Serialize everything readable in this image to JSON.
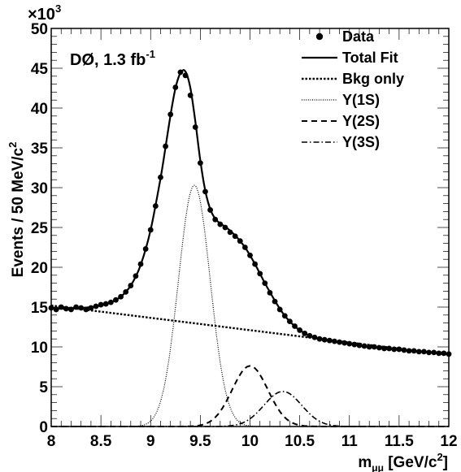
{
  "chart_data": {
    "type": "line",
    "experiment_label": "DØ, 1.3 fb",
    "experiment_label_sup": "-1",
    "xlabel_main": "m",
    "xlabel_sub": "μμ",
    "xlabel_units": "[GeV/c",
    "xlabel_units_sup": "2",
    "xlabel_units_end": "]",
    "ylabel_main": "Events / 50 MeV/c",
    "ylabel_sup": "2",
    "y_multiplier": "×10",
    "y_multiplier_sup": "3",
    "xlim": [
      8,
      12
    ],
    "ylim": [
      0,
      50
    ],
    "x_ticks": [
      "8",
      "8.5",
      "9",
      "9.5",
      "10",
      "10.5",
      "11",
      "11.5",
      "12"
    ],
    "y_ticks": [
      "0",
      "5",
      "10",
      "15",
      "20",
      "25",
      "30",
      "35",
      "40",
      "45",
      "50"
    ],
    "legend_position": "top-right",
    "legend": [
      {
        "label": "Data",
        "style": "marker"
      },
      {
        "label": "Total Fit",
        "style": "solid"
      },
      {
        "label": "Bkg only",
        "style": "dense-dotted"
      },
      {
        "label": "Υ(1S)",
        "style": "fine-dotted"
      },
      {
        "label": "Υ(2S)",
        "style": "dashed"
      },
      {
        "label": "Υ(3S)",
        "style": "dash-dot"
      }
    ],
    "background": {
      "type": "linear",
      "x": [
        8.0,
        12.0
      ],
      "y": [
        15.2,
        9.0
      ]
    },
    "peaks": [
      {
        "name": "Υ(1S)",
        "mean": 9.44,
        "sigma": 0.16,
        "amplitude": 30.3
      },
      {
        "name": "Υ(2S)",
        "mean": 10.0,
        "sigma": 0.18,
        "amplitude": 7.6
      },
      {
        "name": "Υ(3S)",
        "mean": 10.33,
        "sigma": 0.19,
        "amplitude": 4.4
      }
    ],
    "data_points": {
      "x": [
        8.0,
        8.05,
        8.1,
        8.15,
        8.2,
        8.25,
        8.3,
        8.35,
        8.4,
        8.45,
        8.5,
        8.55,
        8.6,
        8.65,
        8.7,
        8.75,
        8.8,
        8.85,
        8.9,
        8.95,
        9.0,
        9.05,
        9.1,
        9.15,
        9.2,
        9.25,
        9.3,
        9.35,
        9.4,
        9.45,
        9.5,
        9.55,
        9.6,
        9.65,
        9.7,
        9.75,
        9.8,
        9.85,
        9.9,
        9.95,
        10.0,
        10.05,
        10.1,
        10.15,
        10.2,
        10.25,
        10.3,
        10.35,
        10.4,
        10.45,
        10.5,
        10.55,
        10.6,
        10.65,
        10.7,
        10.75,
        10.8,
        10.85,
        10.9,
        10.95,
        11.0,
        11.05,
        11.1,
        11.15,
        11.2,
        11.25,
        11.3,
        11.35,
        11.4,
        11.45,
        11.5,
        11.55,
        11.6,
        11.65,
        11.7,
        11.75,
        11.8,
        11.85,
        11.9,
        11.95,
        12.0
      ],
      "y": [
        14.9,
        14.7,
        15.0,
        14.8,
        14.7,
        15.0,
        14.9,
        14.7,
        14.9,
        15.1,
        15.3,
        15.4,
        15.6,
        15.9,
        16.3,
        16.9,
        17.7,
        18.9,
        20.4,
        22.3,
        24.7,
        27.7,
        31.3,
        35.2,
        39.2,
        42.6,
        44.5,
        44.1,
        41.6,
        37.6,
        33.1,
        29.5,
        27.2,
        26.0,
        25.4,
        25.0,
        24.4,
        23.9,
        23.3,
        22.5,
        21.5,
        20.4,
        19.2,
        18.0,
        16.8,
        15.7,
        14.7,
        13.9,
        13.2,
        12.6,
        12.1,
        11.7,
        11.4,
        11.2,
        11.0,
        10.9,
        10.8,
        10.7,
        10.6,
        10.5,
        10.4,
        10.3,
        10.2,
        10.1,
        10.0,
        10.0,
        9.9,
        9.8,
        9.8,
        9.7,
        9.7,
        9.6,
        9.5,
        9.5,
        9.4,
        9.4,
        9.3,
        9.3,
        9.2,
        9.2,
        9.1
      ]
    },
    "total_fit": {
      "x": [
        8.0,
        8.1,
        8.2,
        8.3,
        8.4,
        8.5,
        8.6,
        8.7,
        8.8,
        8.9,
        9.0,
        9.1,
        9.15,
        9.2,
        9.25,
        9.3,
        9.35,
        9.4,
        9.45,
        9.5,
        9.55,
        9.6,
        9.65,
        9.7,
        9.75,
        9.8,
        9.85,
        9.9,
        9.95,
        10.0,
        10.05,
        10.1,
        10.15,
        10.2,
        10.25,
        10.3,
        10.35,
        10.4,
        10.45,
        10.5,
        10.6,
        10.7,
        10.8,
        10.9,
        11.0,
        11.2,
        11.4,
        11.6,
        11.8,
        12.0
      ],
      "y": [
        14.9,
        14.8,
        14.9,
        14.9,
        15.0,
        15.2,
        15.6,
        16.3,
        17.7,
        20.3,
        24.7,
        31.2,
        35.1,
        39.1,
        42.5,
        44.4,
        44.6,
        42.5,
        38.3,
        33.4,
        29.6,
        27.3,
        26.1,
        25.5,
        25.1,
        24.6,
        24.0,
        23.3,
        22.5,
        21.5,
        20.4,
        19.2,
        18.0,
        16.9,
        15.8,
        14.8,
        13.9,
        13.2,
        12.6,
        12.1,
        11.4,
        11.0,
        10.8,
        10.6,
        10.4,
        10.0,
        9.8,
        9.5,
        9.3,
        9.1
      ]
    }
  }
}
